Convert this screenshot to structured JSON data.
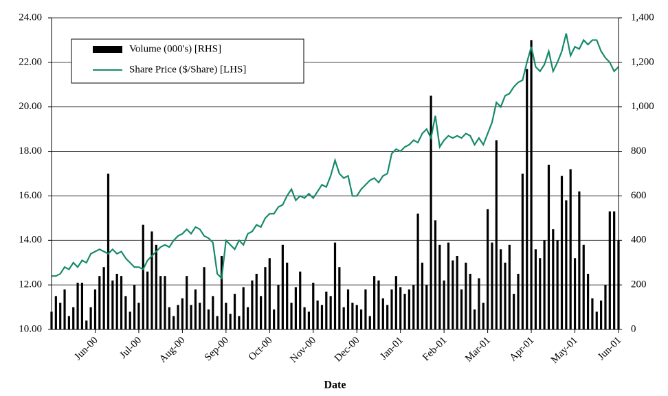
{
  "chart_data": {
    "type": "bar-line",
    "x_label": "Date",
    "categories": [
      null,
      null,
      null,
      null,
      null,
      null,
      null,
      null,
      null,
      null,
      "Jun-00",
      null,
      null,
      null,
      null,
      null,
      null,
      null,
      null,
      null,
      "Jul-00",
      null,
      null,
      null,
      null,
      null,
      null,
      null,
      null,
      null,
      "Aug-00",
      null,
      null,
      null,
      null,
      null,
      null,
      null,
      null,
      null,
      "Sep-00",
      null,
      null,
      null,
      null,
      null,
      null,
      null,
      null,
      null,
      "Oct-00",
      null,
      null,
      null,
      null,
      null,
      null,
      null,
      null,
      null,
      "Nov-00",
      null,
      null,
      null,
      null,
      null,
      null,
      null,
      null,
      null,
      "Dec-00",
      null,
      null,
      null,
      null,
      null,
      null,
      null,
      null,
      null,
      "Jan-01",
      null,
      null,
      null,
      null,
      null,
      null,
      null,
      null,
      null,
      "Feb-01",
      null,
      null,
      null,
      null,
      null,
      null,
      null,
      null,
      null,
      "Mar-01",
      null,
      null,
      null,
      null,
      null,
      null,
      null,
      null,
      null,
      "Apr-01",
      null,
      null,
      null,
      null,
      null,
      null,
      null,
      null,
      null,
      "May-01",
      null,
      null,
      null,
      null,
      null,
      null,
      null,
      null,
      null,
      "Jun-01"
    ],
    "series": [
      {
        "name": "Volume (000's) [RHS]",
        "color": "#000000",
        "axis": "y2",
        "kind": "bar",
        "values": [
          80,
          150,
          120,
          180,
          60,
          100,
          210,
          210,
          40,
          100,
          180,
          240,
          280,
          700,
          220,
          250,
          240,
          150,
          80,
          200,
          120,
          470,
          260,
          440,
          380,
          240,
          240,
          100,
          60,
          110,
          140,
          240,
          110,
          180,
          120,
          280,
          90,
          150,
          60,
          330,
          120,
          70,
          160,
          60,
          190,
          100,
          220,
          250,
          150,
          280,
          320,
          90,
          200,
          380,
          300,
          120,
          190,
          260,
          100,
          80,
          210,
          130,
          110,
          170,
          150,
          390,
          280,
          100,
          180,
          120,
          110,
          90,
          180,
          60,
          240,
          220,
          140,
          110,
          180,
          240,
          190,
          160,
          180,
          200,
          520,
          300,
          200,
          1050,
          490,
          380,
          220,
          390,
          310,
          330,
          180,
          300,
          250,
          90,
          230,
          120,
          540,
          390,
          850,
          360,
          300,
          380,
          160,
          250,
          700,
          1170,
          1300,
          360,
          320,
          400,
          740,
          450,
          400,
          690,
          580,
          720,
          320,
          620,
          380,
          250,
          140,
          80,
          130,
          200,
          530,
          530,
          400
        ]
      },
      {
        "name": "Share Price ($/Share) [LHS]",
        "color": "#16896a",
        "kind": "line",
        "values": [
          12.4,
          12.4,
          12.5,
          12.8,
          12.7,
          13.0,
          12.8,
          13.1,
          13.0,
          13.4,
          13.5,
          13.6,
          13.5,
          13.4,
          13.6,
          13.4,
          13.5,
          13.2,
          13.0,
          12.8,
          12.8,
          12.7,
          13.1,
          13.3,
          13.5,
          13.7,
          13.8,
          13.7,
          14.0,
          14.2,
          14.3,
          14.5,
          14.3,
          14.6,
          14.5,
          14.2,
          14.1,
          13.9,
          12.5,
          12.3,
          14.0,
          13.8,
          13.6,
          14.0,
          13.8,
          14.3,
          14.4,
          14.7,
          14.6,
          15.0,
          15.2,
          15.2,
          15.5,
          15.6,
          16.0,
          16.3,
          15.8,
          16.0,
          15.9,
          16.1,
          15.9,
          16.2,
          16.5,
          16.4,
          16.9,
          17.6,
          17.0,
          16.8,
          16.9,
          16.0,
          16.0,
          16.3,
          16.5,
          16.7,
          16.8,
          16.6,
          16.9,
          17.0,
          17.9,
          18.1,
          18.0,
          18.2,
          18.3,
          18.5,
          18.4,
          18.8,
          19.0,
          18.6,
          19.6,
          18.2,
          18.5,
          18.7,
          18.6,
          18.7,
          18.6,
          18.8,
          18.7,
          18.3,
          18.6,
          18.3,
          18.8,
          19.3,
          20.2,
          20.0,
          20.5,
          20.6,
          20.9,
          21.1,
          21.2,
          22.0,
          22.7,
          21.8,
          21.6,
          21.9,
          22.5,
          21.6,
          22.0,
          22.5,
          23.3,
          22.3,
          22.7,
          22.6,
          23.0,
          22.8,
          23.0,
          23.0,
          22.5,
          22.2,
          22.0,
          21.6,
          21.8
        ]
      }
    ],
    "ylim": [
      10,
      24
    ],
    "yticks": [
      {
        "value": 10,
        "label": "10.00"
      },
      {
        "value": 12,
        "label": "12.00"
      },
      {
        "value": 14,
        "label": "14.00"
      },
      {
        "value": 16,
        "label": "16.00"
      },
      {
        "value": 18,
        "label": "18.00"
      },
      {
        "value": 20,
        "label": "20.00"
      },
      {
        "value": 22,
        "label": "22.00"
      },
      {
        "value": 24,
        "label": "24.00"
      }
    ],
    "y2lim": [
      0,
      1400
    ],
    "y2ticks": [
      0,
      200,
      400,
      600,
      800,
      {
        "value": 1000,
        "label": "1,000"
      },
      {
        "value": 1200,
        "label": "1,200"
      },
      {
        "value": 1400,
        "label": "1,400"
      }
    ],
    "grid": true,
    "legend": "top-left"
  }
}
